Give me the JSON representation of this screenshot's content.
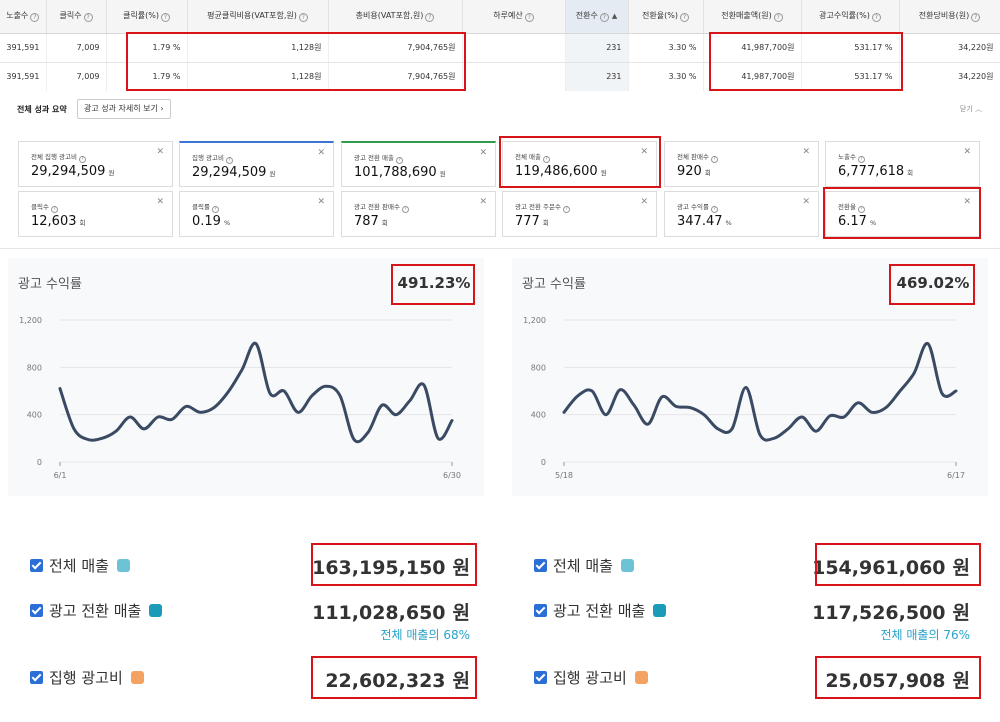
{
  "table": {
    "headers": [
      "노출수",
      "클릭수",
      "클릭률(%)",
      "평균클릭비용(VAT포함,원)",
      "총비용(VAT포함,원)",
      "하루예산",
      "전환수",
      "전환율(%)",
      "전환매출액(원)",
      "광고수익률(%)",
      "전환당비용(원)"
    ],
    "rows": [
      [
        "391,591",
        "7,009",
        "1.79 %",
        "1,128원",
        "7,904,765원",
        "",
        "231",
        "3.30 %",
        "41,987,700원",
        "531.17 %",
        "34,220원"
      ],
      [
        "391,591",
        "7,009",
        "1.79 %",
        "1,128원",
        "7,904,765원",
        "",
        "231",
        "3.30 %",
        "41,987,700원",
        "531.17 %",
        "34,220원"
      ]
    ]
  },
  "summary": {
    "title": "전체 성과 요약",
    "detail_button": "광고 성과 자세히 보기",
    "close_label": "닫기",
    "cards": [
      {
        "label": "전체 집행 광고비",
        "value": "29,294,509",
        "unit": "원"
      },
      {
        "label": "집행 광고비",
        "value": "29,294,509",
        "unit": "원"
      },
      {
        "label": "광고 전환 매출",
        "value": "101,788,690",
        "unit": "원"
      },
      {
        "label": "전체 매출",
        "value": "119,486,600",
        "unit": "원"
      },
      {
        "label": "전체 판매수",
        "value": "920",
        "unit": "회"
      },
      {
        "label": "노출수",
        "value": "6,777,618",
        "unit": "회"
      },
      {
        "label": "클릭수",
        "value": "12,603",
        "unit": "회"
      },
      {
        "label": "클릭률",
        "value": "0.19",
        "unit": "%"
      },
      {
        "label": "광고 전환 판매수",
        "value": "787",
        "unit": "회"
      },
      {
        "label": "광고 전환 주문수",
        "value": "777",
        "unit": "회"
      },
      {
        "label": "광고 수익률",
        "value": "347.47",
        "unit": "%"
      },
      {
        "label": "전환율",
        "value": "6.17",
        "unit": "%"
      }
    ]
  },
  "left_panel": {
    "title": "광고 수익률",
    "highlight": "491.23%",
    "legend": [
      {
        "label": "전체 매출",
        "amount": "163,195,150",
        "unit": "원",
        "color": "#6cc3d6"
      },
      {
        "label": "광고 전환 매출",
        "amount": "111,028,650",
        "unit": "원",
        "color": "#1a9cb8",
        "share": "전체 매출의 68%"
      },
      {
        "label": "집행 광고비",
        "amount": "22,602,323",
        "unit": "원",
        "color": "#f4a261"
      }
    ]
  },
  "right_panel": {
    "title": "광고 수익률",
    "highlight": "469.02%",
    "legend": [
      {
        "label": "전체 매출",
        "amount": "154,961,060",
        "unit": "원",
        "color": "#6cc3d6"
      },
      {
        "label": "광고 전환 매출",
        "amount": "117,526,500",
        "unit": "원",
        "color": "#1a9cb8",
        "share": "전체 매출의 76%"
      },
      {
        "label": "집행 광고비",
        "amount": "25,057,908",
        "unit": "원",
        "color": "#f4a261"
      }
    ]
  },
  "chart_data": [
    {
      "type": "line",
      "ylim": [
        0,
        1200
      ],
      "yticks": [
        "0",
        "400",
        "800",
        "1,200"
      ],
      "xticks": [
        "6/1",
        "6/30"
      ],
      "color": "#3a4a63",
      "values": [
        620,
        280,
        190,
        200,
        260,
        380,
        280,
        380,
        360,
        470,
        420,
        460,
        590,
        780,
        1000,
        580,
        600,
        420,
        560,
        640,
        560,
        190,
        250,
        480,
        400,
        520,
        650,
        200,
        350
      ]
    },
    {
      "type": "line",
      "ylim": [
        0,
        1200
      ],
      "yticks": [
        "0",
        "400",
        "800",
        "1,200"
      ],
      "xticks": [
        "5/18",
        "6/17"
      ],
      "color": "#3a4a63",
      "values": [
        420,
        560,
        600,
        400,
        610,
        480,
        320,
        550,
        470,
        460,
        400,
        280,
        280,
        630,
        230,
        200,
        280,
        380,
        260,
        390,
        380,
        500,
        420,
        460,
        600,
        750,
        1000,
        580,
        600
      ]
    }
  ]
}
